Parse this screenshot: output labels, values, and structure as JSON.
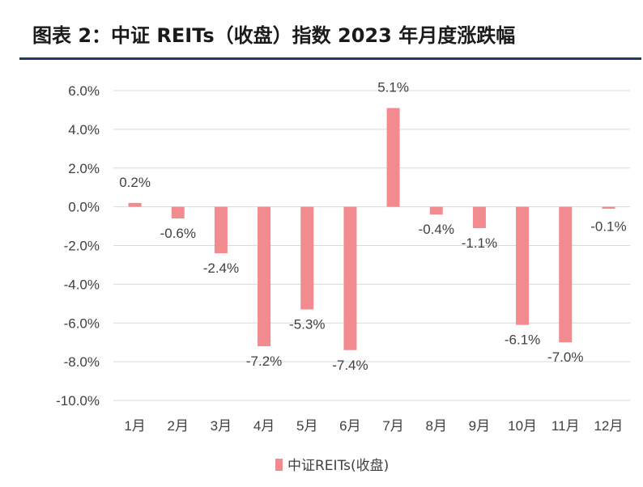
{
  "title": "图表 2：中证 REITs（收盘）指数 2023 年月度涨跌幅",
  "colors": {
    "bar": "#f28b8f",
    "grid": "#d9d9d9",
    "title_rule": "#1f3a6b",
    "text": "#404040"
  },
  "chart_data": {
    "type": "bar",
    "title": "图表 2：中证 REITs（收盘）指数 2023 年月度涨跌幅",
    "categories": [
      "1月",
      "2月",
      "3月",
      "4月",
      "5月",
      "6月",
      "7月",
      "8月",
      "9月",
      "10月",
      "11月",
      "12月"
    ],
    "series": [
      {
        "name": "中证REITs(收盘)",
        "values": [
          0.2,
          -0.6,
          -2.4,
          -7.2,
          -5.3,
          -7.4,
          5.1,
          -0.4,
          -1.1,
          -6.1,
          -7.0,
          -0.1
        ],
        "labels": [
          "0.2%",
          "-0.6%",
          "-2.4%",
          "-7.2%",
          "-5.3%",
          "-7.4%",
          "5.1%",
          "-0.4%",
          "-1.1%",
          "-6.1%",
          "-7.0%",
          "-0.1%"
        ]
      }
    ],
    "ylim": [
      -10,
      6
    ],
    "yticks": [
      6,
      4,
      2,
      0,
      -2,
      -4,
      -6,
      -8,
      -10
    ],
    "ytick_labels": [
      "6.0%",
      "4.0%",
      "2.0%",
      "0.0%",
      "-2.0%",
      "-4.0%",
      "-6.0%",
      "-8.0%",
      "-10.0%"
    ],
    "grid": true,
    "legend": "bottom-center",
    "xlabel": "",
    "ylabel": ""
  }
}
